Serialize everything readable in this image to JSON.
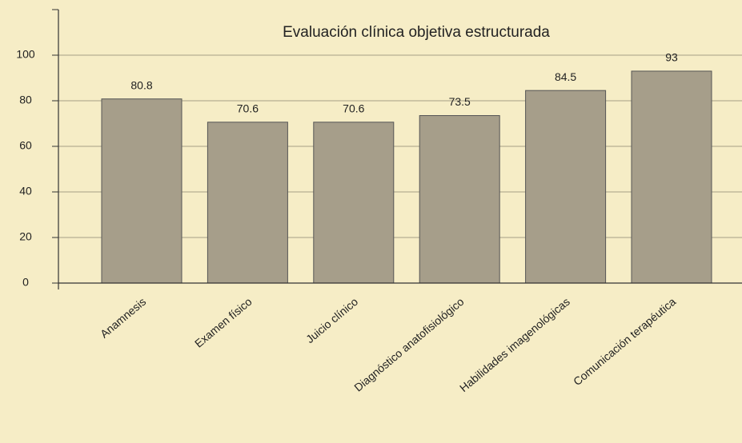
{
  "chart_data": {
    "type": "bar",
    "title": "Evaluación clínica objetiva estructurada",
    "categories": [
      "Anamnesis",
      "Examen físico",
      "Juicio clínico",
      "Diagnóstico anatofisiológico",
      "Habilidades imagenológicas",
      "Comunicación terapéutica"
    ],
    "values": [
      80.8,
      70.6,
      70.6,
      73.5,
      84.5,
      93
    ],
    "color": "#a69e8a",
    "ylim": [
      0,
      120
    ],
    "yticks": [
      0,
      20,
      40,
      60,
      80,
      100
    ],
    "grid": true
  }
}
